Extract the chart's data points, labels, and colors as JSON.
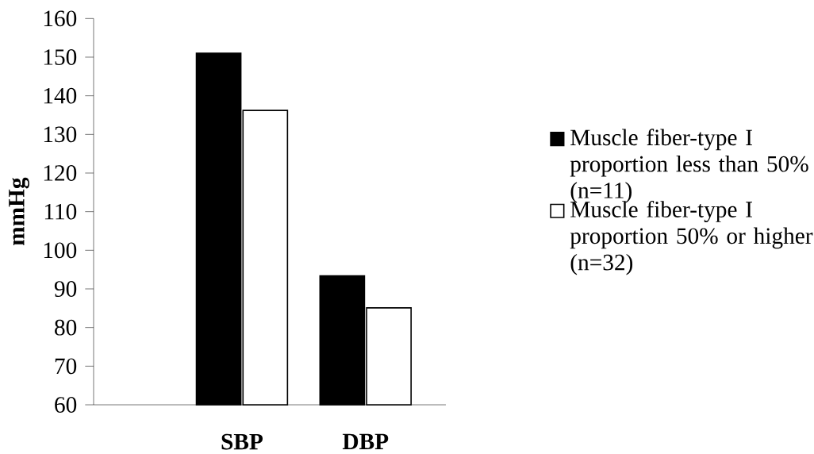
{
  "chart_data": {
    "type": "bar",
    "ylabel": "mmHg",
    "categories": [
      "SBP",
      "DBP"
    ],
    "series": [
      {
        "name": "Muscle fiber-type I proportion less than 50% (n=11)",
        "color": "#000000",
        "values": [
          151,
          93.4
        ]
      },
      {
        "name": "Muscle fiber-type I proportion 50% or higher (n=32)",
        "color": "#ffffff",
        "values": [
          136.2,
          85.1
        ]
      }
    ],
    "ylim": [
      60,
      160
    ],
    "yticks": [
      60,
      70,
      80,
      90,
      100,
      110,
      120,
      130,
      140,
      150,
      160
    ],
    "legend": "right"
  }
}
